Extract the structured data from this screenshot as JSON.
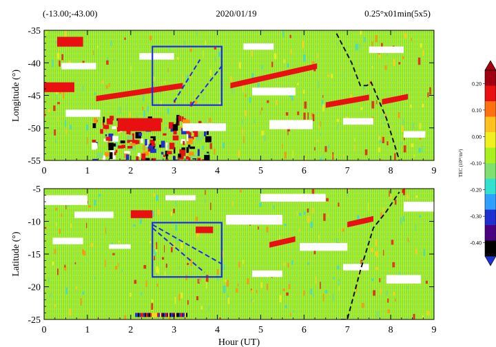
{
  "header": {
    "location": "(-13.00;-43.00)",
    "date": "2020/01/19",
    "resolution": "0.25°x01min(5x5)"
  },
  "colorbar": {
    "label": "TEC (10¹⁶/m²)",
    "ticks": [
      "0.20",
      "0.10",
      "0.00",
      "-0.10",
      "-0.20",
      "-0.30",
      "-0.40"
    ],
    "tick_values": [
      0.2,
      0.1,
      0.0,
      -0.1,
      -0.2,
      -0.3,
      -0.4
    ],
    "range": [
      -0.45,
      0.25
    ],
    "colors": [
      "#000000",
      "#4b0082",
      "#1f2fd0",
      "#2fa0ff",
      "#33e0d0",
      "#7fe070",
      "#a8f020",
      "#f0f020",
      "#ffc020",
      "#ff7010",
      "#e81010",
      "#a00010"
    ]
  },
  "chart_data": [
    {
      "type": "heatmap",
      "panel": "top",
      "xlabel": "",
      "ylabel": "Longitude (°)",
      "xlim": [
        0,
        9
      ],
      "ylim": [
        -55,
        -35
      ],
      "xticks": [
        "0",
        "1",
        "2",
        "3",
        "4",
        "5",
        "6",
        "7",
        "8",
        "9"
      ],
      "yticks": [
        "-35",
        "-40",
        "-45",
        "-50",
        "-55"
      ],
      "ytick_values": [
        -35,
        -40,
        -45,
        -50,
        -55
      ],
      "box": {
        "x": [
          2.5,
          4.1
        ],
        "y": [
          -46.5,
          -37.5
        ]
      },
      "dashed_blue_lines": [
        {
          "x": [
            3.0,
            3.6
          ],
          "y": [
            -46.0,
            -39.5
          ]
        },
        {
          "x": [
            3.4,
            4.1
          ],
          "y": [
            -46.5,
            -40.5
          ]
        }
      ],
      "dashed_black_line": {
        "x": [
          6.75,
          7.1,
          7.3,
          7.45,
          7.55,
          7.9,
          8.2
        ],
        "y": [
          -35.5,
          -40.0,
          -43.5,
          -43.5,
          -43.0,
          -48.5,
          -55.0
        ]
      },
      "red_streaks": [
        {
          "x": [
            1.2,
            3.2
          ],
          "y": [
            -45.5,
            -43.5
          ]
        },
        {
          "x": [
            4.3,
            6.3
          ],
          "y": [
            -43.5,
            -40.5
          ]
        },
        {
          "x": [
            6.5,
            7.5
          ],
          "y": [
            -46.5,
            -45.3
          ]
        },
        {
          "x": [
            7.8,
            8.4
          ],
          "y": [
            -46.0,
            -45.2
          ]
        }
      ],
      "red_patches": [
        {
          "x": [
            0.3,
            0.9
          ],
          "y": [
            -37.5,
            -36.0
          ]
        },
        {
          "x": [
            0.0,
            0.7
          ],
          "y": [
            -44.5,
            -43.0
          ]
        },
        {
          "x": [
            1.7,
            2.7
          ],
          "y": [
            -50.5,
            -48.5
          ]
        }
      ],
      "dark_region": {
        "x": [
          1.1,
          3.8
        ],
        "y": [
          -55,
          -48
        ]
      },
      "white_gaps": [
        {
          "x": [
            0.5,
            1.3
          ],
          "y": [
            -48.3,
            -47.2
          ]
        },
        {
          "x": [
            3.2,
            4.2
          ],
          "y": [
            -50.5,
            -49.3
          ]
        },
        {
          "x": [
            4.8,
            5.8
          ],
          "y": [
            -45.0,
            -43.8
          ]
        },
        {
          "x": [
            5.2,
            6.2
          ],
          "y": [
            -50.2,
            -48.8
          ]
        },
        {
          "x": [
            0.4,
            1.2
          ],
          "y": [
            -41.0,
            -40.0
          ]
        },
        {
          "x": [
            6.9,
            7.6
          ],
          "y": [
            -49.5,
            -48.5
          ]
        },
        {
          "x": [
            8.3,
            8.8
          ],
          "y": [
            -51.5,
            -50.5
          ]
        },
        {
          "x": [
            2.2,
            3.0
          ],
          "y": [
            -39.5,
            -38.5
          ]
        },
        {
          "x": [
            7.5,
            8.3
          ],
          "y": [
            -38.5,
            -37.5
          ]
        },
        {
          "x": [
            4.6,
            5.3
          ],
          "y": [
            -38.0,
            -37.0
          ]
        }
      ]
    },
    {
      "type": "heatmap",
      "panel": "bottom",
      "xlabel": "Hour (UT)",
      "ylabel": "Latitude (°)",
      "xlim": [
        0,
        9
      ],
      "ylim": [
        -25,
        -5
      ],
      "xticks": [
        "0",
        "1",
        "2",
        "3",
        "4",
        "5",
        "6",
        "7",
        "8",
        "9"
      ],
      "yticks": [
        "-5",
        "-10",
        "-15",
        "-20",
        "-25"
      ],
      "ytick_values": [
        -5,
        -10,
        -15,
        -20,
        -25
      ],
      "box": {
        "x": [
          2.5,
          4.1
        ],
        "y": [
          -18.5,
          -10.2
        ]
      },
      "dashed_blue_lines": [
        {
          "x": [
            2.5,
            4.1
          ],
          "y": [
            -10.5,
            -16.5
          ]
        },
        {
          "x": [
            2.5,
            3.7
          ],
          "y": [
            -11.0,
            -17.8
          ]
        }
      ],
      "dashed_black_line": {
        "x": [
          6.85,
          7.0,
          7.3,
          7.6,
          7.9,
          8.2
        ],
        "y": [
          -25.0,
          -25.0,
          -17.5,
          -11.0,
          -8.5,
          -5.5
        ]
      },
      "red_streaks": [
        {
          "x": [
            5.2,
            5.8
          ],
          "y": [
            -13.6,
            -12.7
          ]
        },
        {
          "x": [
            7.0,
            7.6
          ],
          "y": [
            -10.5,
            -9.6
          ]
        }
      ],
      "red_patches": [
        {
          "x": [
            2.0,
            2.5
          ],
          "y": [
            -9.5,
            -8.3
          ]
        },
        {
          "x": [
            3.5,
            3.9
          ],
          "y": [
            -11.8,
            -10.8
          ]
        }
      ],
      "white_gaps": [
        {
          "x": [
            0.0,
            1.0
          ],
          "y": [
            -7.5,
            -6.0
          ]
        },
        {
          "x": [
            4.2,
            5.5
          ],
          "y": [
            -10.5,
            -9.0
          ]
        },
        {
          "x": [
            5.0,
            6.5
          ],
          "y": [
            -7.0,
            -5.8
          ]
        },
        {
          "x": [
            5.9,
            7.0
          ],
          "y": [
            -14.5,
            -13.3
          ]
        },
        {
          "x": [
            8.3,
            9.0
          ],
          "y": [
            -8.5,
            -7.0
          ]
        },
        {
          "x": [
            0.7,
            1.6
          ],
          "y": [
            -9.5,
            -8.5
          ]
        },
        {
          "x": [
            4.8,
            5.5
          ],
          "y": [
            -18.5,
            -17.5
          ]
        },
        {
          "x": [
            7.9,
            8.7
          ],
          "y": [
            -19.5,
            -18.2
          ]
        },
        {
          "x": [
            0.2,
            0.9
          ],
          "y": [
            -13.5,
            -12.5
          ]
        },
        {
          "x": [
            6.9,
            7.5
          ],
          "y": [
            -17.5,
            -16.5
          ]
        },
        {
          "x": [
            1.5,
            2.0
          ],
          "y": [
            -14.2,
            -13.5
          ]
        },
        {
          "x": [
            2.8,
            3.5
          ],
          "y": [
            -6.8,
            -6.0
          ]
        }
      ],
      "dark_strip": {
        "x": [
          2.1,
          3.3
        ],
        "y": [
          -25,
          -24.0
        ]
      }
    }
  ]
}
